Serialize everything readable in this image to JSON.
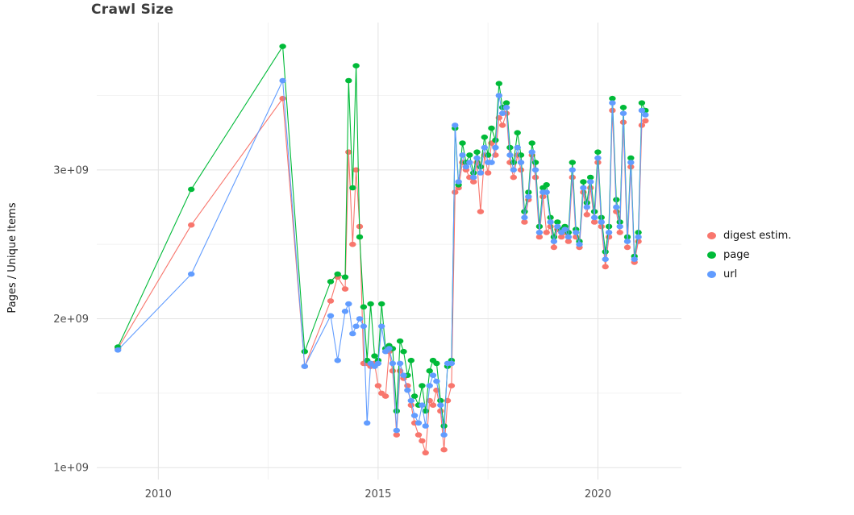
{
  "page": {
    "title": "Crawl Size",
    "ylabel": "Pages / Unique Items"
  },
  "chart_data": {
    "type": "line",
    "title": "Crawl Size",
    "xlabel": "",
    "ylabel": "Pages / Unique Items",
    "y_unit": "1e9 (values are billions of pages / unique items)",
    "grid": true,
    "legend_position": "right",
    "xlim": [
      2008.6,
      2021.9
    ],
    "ylim": [
      0.92,
      3.99
    ],
    "x_ticks": {
      "major": [
        2010,
        2015,
        2020
      ],
      "labels": [
        "2010",
        "2015",
        "2020"
      ],
      "minor": [
        2012.5,
        2017.5
      ]
    },
    "y_ticks": {
      "major": [
        1,
        2,
        3
      ],
      "labels": [
        "1e+09",
        "2e+09",
        "3e+09"
      ],
      "minor": [
        1.5,
        2.5,
        3.5
      ]
    },
    "x": [
      2009.08,
      2010.75,
      2012.83,
      2013.33,
      2013.92,
      2014.08,
      2014.25,
      2014.33,
      2014.42,
      2014.5,
      2014.58,
      2014.67,
      2014.75,
      2014.83,
      2014.92,
      2015,
      2015.08,
      2015.17,
      2015.25,
      2015.33,
      2015.42,
      2015.5,
      2015.58,
      2015.67,
      2015.75,
      2015.83,
      2015.92,
      2016,
      2016.08,
      2016.17,
      2016.25,
      2016.33,
      2016.42,
      2016.5,
      2016.58,
      2016.67,
      2016.75,
      2016.83,
      2016.92,
      2017,
      2017.08,
      2017.17,
      2017.25,
      2017.33,
      2017.42,
      2017.5,
      2017.58,
      2017.67,
      2017.75,
      2017.83,
      2017.92,
      2018,
      2018.08,
      2018.17,
      2018.25,
      2018.33,
      2018.42,
      2018.5,
      2018.58,
      2018.67,
      2018.75,
      2018.83,
      2018.92,
      2019,
      2019.08,
      2019.17,
      2019.25,
      2019.33,
      2019.42,
      2019.5,
      2019.58,
      2019.67,
      2019.75,
      2019.83,
      2019.92,
      2020,
      2020.08,
      2020.17,
      2020.25,
      2020.33,
      2020.42,
      2020.5,
      2020.58,
      2020.67,
      2020.75,
      2020.83,
      2020.92,
      2021,
      2021.08
    ],
    "series": [
      {
        "name": "digest estim.",
        "color": "#f8766d",
        "values": [
          1.8,
          2.63,
          3.48,
          1.68,
          2.12,
          2.28,
          2.2,
          3.12,
          2.5,
          3,
          2.62,
          1.7,
          1.7,
          1.68,
          1.7,
          1.55,
          1.5,
          1.48,
          1.78,
          1.65,
          1.22,
          1.65,
          1.6,
          1.55,
          1.42,
          1.3,
          1.22,
          1.18,
          1.1,
          1.45,
          1.42,
          1.52,
          1.38,
          1.12,
          1.45,
          1.55,
          2.85,
          2.88,
          3.05,
          3,
          2.95,
          2.92,
          3.05,
          2.72,
          3.1,
          2.98,
          3.18,
          3.1,
          3.35,
          3.3,
          3.38,
          3.05,
          2.95,
          3.1,
          3,
          2.65,
          2.8,
          3.1,
          2.95,
          2.55,
          2.82,
          2.58,
          2.62,
          2.48,
          2.6,
          2.55,
          2.58,
          2.52,
          2.95,
          2.55,
          2.48,
          2.85,
          2.7,
          2.88,
          2.65,
          3.05,
          2.62,
          2.35,
          2.55,
          3.4,
          2.72,
          2.58,
          3.32,
          2.48,
          3.02,
          2.38,
          2.52,
          3.3,
          3.33
        ]
      },
      {
        "name": "page",
        "color": "#00ba38",
        "values": [
          1.81,
          2.87,
          3.83,
          1.78,
          2.25,
          2.3,
          2.28,
          3.6,
          2.88,
          3.7,
          2.55,
          2.08,
          1.72,
          2.1,
          1.75,
          1.72,
          2.1,
          1.8,
          1.82,
          1.8,
          1.38,
          1.85,
          1.78,
          1.62,
          1.72,
          1.48,
          1.42,
          1.55,
          1.38,
          1.65,
          1.72,
          1.7,
          1.45,
          1.28,
          1.68,
          1.72,
          3.28,
          2.9,
          3.18,
          3.05,
          3.1,
          2.98,
          3.12,
          3.02,
          3.22,
          3.1,
          3.28,
          3.2,
          3.58,
          3.42,
          3.45,
          3.15,
          3.05,
          3.25,
          3.1,
          2.72,
          2.85,
          3.18,
          3.05,
          2.62,
          2.88,
          2.9,
          2.68,
          2.55,
          2.65,
          2.6,
          2.62,
          2.58,
          3.05,
          2.6,
          2.52,
          2.92,
          2.78,
          2.95,
          2.72,
          3.12,
          2.68,
          2.45,
          2.62,
          3.48,
          2.8,
          2.65,
          3.42,
          2.55,
          3.08,
          2.42,
          2.58,
          3.45,
          3.4
        ]
      },
      {
        "name": "url",
        "color": "#619cff",
        "values": [
          1.79,
          2.3,
          3.6,
          1.68,
          2.02,
          1.72,
          2.05,
          2.1,
          1.9,
          1.95,
          2,
          1.95,
          1.3,
          1.7,
          1.68,
          1.7,
          1.95,
          1.78,
          1.8,
          1.7,
          1.25,
          1.7,
          1.62,
          1.52,
          1.45,
          1.35,
          1.3,
          1.42,
          1.28,
          1.55,
          1.62,
          1.58,
          1.42,
          1.22,
          1.7,
          1.7,
          3.3,
          2.92,
          3.1,
          3.02,
          3.05,
          2.95,
          3.08,
          2.98,
          3.15,
          3.05,
          3.05,
          3.15,
          3.5,
          3.38,
          3.42,
          3.1,
          3,
          3.15,
          3.05,
          2.68,
          2.82,
          3.12,
          3,
          2.58,
          2.85,
          2.85,
          2.65,
          2.52,
          2.62,
          2.58,
          2.6,
          2.55,
          3,
          2.58,
          2.5,
          2.88,
          2.75,
          2.92,
          2.68,
          3.08,
          2.65,
          2.4,
          2.58,
          3.45,
          2.75,
          2.62,
          3.38,
          2.52,
          3.05,
          2.4,
          2.55,
          3.4,
          3.37
        ]
      }
    ]
  },
  "style": {
    "grid_major_color": "#e2e2e2",
    "grid_minor_color": "#f0f0f0",
    "tick_label_color": "#4d4d4d"
  }
}
